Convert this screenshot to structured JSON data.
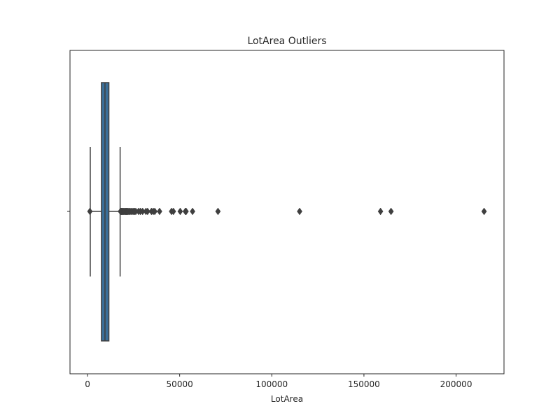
{
  "chart_data": {
    "type": "box",
    "orientation": "horizontal",
    "title": "LotArea Outliers",
    "xlabel": "LotArea",
    "ylabel": "",
    "xlim": [
      -9500,
      226000
    ],
    "xticks": [
      0,
      50000,
      100000,
      150000,
      200000
    ],
    "xtick_labels": [
      "0",
      "50000",
      "100000",
      "150000",
      "200000"
    ],
    "grid": false,
    "box": {
      "color": "#3a6f99",
      "edge_color": "#3f3f3f",
      "q1": 7550,
      "median": 9480,
      "q3": 11600,
      "whisker_low": 1500,
      "whisker_high": 17700
    },
    "outliers": [
      1300,
      17900,
      18300,
      18600,
      19000,
      19400,
      19800,
      20200,
      20700,
      21100,
      21500,
      21900,
      22400,
      23000,
      23600,
      24300,
      25000,
      25600,
      26200,
      27700,
      28700,
      29900,
      31700,
      32600,
      34700,
      35700,
      36500,
      39100,
      45600,
      46600,
      50300,
      53100,
      53500,
      57000,
      70800,
      115100,
      159000,
      164700,
      215200
    ]
  }
}
